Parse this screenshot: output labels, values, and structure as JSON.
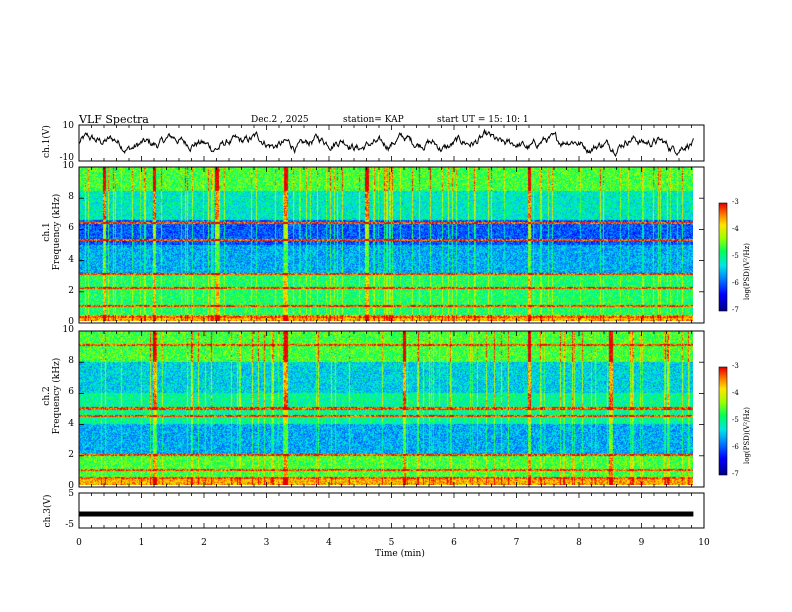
{
  "header": {
    "title": "VLF Spectra",
    "date_label": "Dec.2 , 2025",
    "station_label": "station= KAP",
    "start_label": "start UT = 15: 10: 1"
  },
  "axes": {
    "ch1_ylabel": "ch.1(V)",
    "ch2_ylabel": "ch.2\nFrequency (kHz)",
    "ch2_ylabel_top": "ch.1",
    "ch2_ylabel_bottom": "Frequency (kHz)",
    "ch3_ylabel_top": "ch.2",
    "ch3_ylabel_bottom": "Frequency (kHz)",
    "ch3_ylabel": "ch.3(V)",
    "xlabel": "Time (min)",
    "colorbar_label": "log(PSD)(V²/Hz)"
  },
  "colors": {
    "spectrogram_low": "#0000c8",
    "spectrogram_mid": "#00ff60",
    "spectrogram_high": "#ff0000"
  },
  "chart_data": [
    {
      "type": "line",
      "name": "ch1-waveform",
      "ylabel": "ch.1(V)",
      "ylim": [
        -10,
        10
      ],
      "yticks": [
        "10",
        "-10"
      ],
      "x_range_min": [
        0,
        9.83
      ],
      "approx_mean": 0,
      "approx_amplitude": 4
    },
    {
      "type": "heatmap",
      "name": "ch1-spectrogram",
      "xlabel": "Time (min)",
      "ylabel": "Frequency (kHz)",
      "xlim": [
        0,
        10
      ],
      "ylim": [
        0,
        10
      ],
      "yticks": [
        "0",
        "2",
        "4",
        "6",
        "8",
        "10"
      ],
      "colorbar": {
        "label": "log(PSD)(V²/Hz)",
        "range": [
          -7,
          -3
        ],
        "ticks": [
          "-3",
          "-4",
          "-5",
          "-6",
          "-7"
        ]
      },
      "notes": "strong narrowband lines near 0.3, 1.0, 2.2, 5.3, 6.4 kHz; impulsive sferics across 0-10 kHz"
    },
    {
      "type": "heatmap",
      "name": "ch2-spectrogram",
      "xlabel": "Time (min)",
      "ylabel": "Frequency (kHz)",
      "xlim": [
        0,
        10
      ],
      "ylim": [
        0,
        10
      ],
      "yticks": [
        "0",
        "2",
        "4",
        "6",
        "8",
        "10"
      ],
      "colorbar": {
        "label": "log(PSD)(V²/Hz)",
        "range": [
          -7,
          -3
        ],
        "ticks": [
          "-3",
          "-4",
          "-5",
          "-6",
          "-7"
        ]
      },
      "notes": "lines near 0.5, 1.0, 2.0, 4.5, 5.0, 9.1 kHz; strong sferics near 1.2, 3.3, 7.2 min"
    },
    {
      "type": "line",
      "name": "ch3-waveform",
      "ylabel": "ch.3(V)",
      "ylim": [
        -5,
        5
      ],
      "yticks": [
        "5",
        "-5"
      ],
      "constant_value": -1,
      "x_range_min": [
        0,
        9.83
      ]
    }
  ],
  "xaxis": {
    "ticks": [
      "0",
      "1",
      "2",
      "3",
      "4",
      "5",
      "6",
      "7",
      "8",
      "9",
      "10"
    ]
  }
}
